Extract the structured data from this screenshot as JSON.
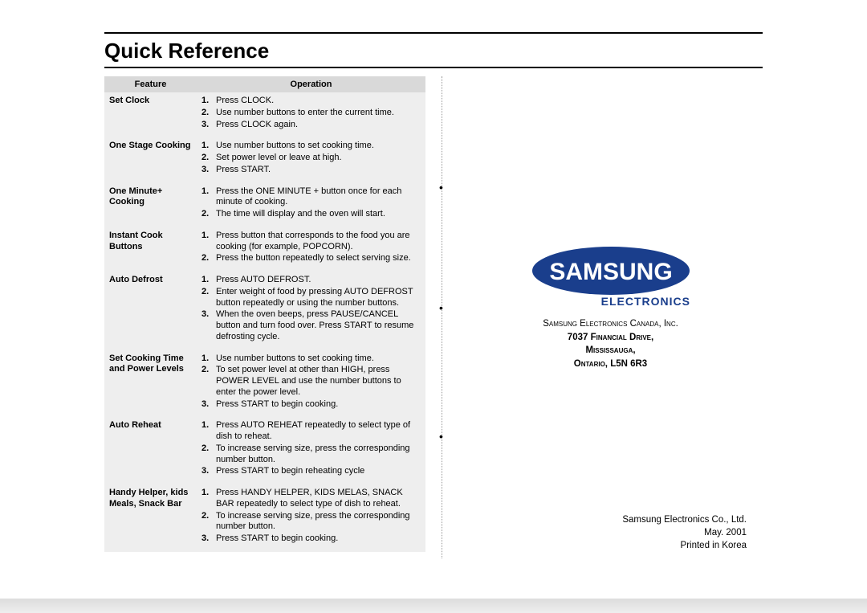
{
  "page": {
    "title": "Quick Reference",
    "background": "#ffffff",
    "rule_color": "#000000",
    "title_fontsize": 26
  },
  "table": {
    "header_bg": "#d9d9d9",
    "body_bg": "#eeeeee",
    "fontsize": 11,
    "columns": {
      "feature": "Feature",
      "operation": "Operation"
    },
    "rows": [
      {
        "feature": "Set Clock",
        "steps": [
          "Press CLOCK.",
          "Use number buttons to enter the current time.",
          "Press CLOCK again."
        ]
      },
      {
        "feature": "One Stage Cooking",
        "steps": [
          "Use number buttons to set cooking time.",
          "Set power level or leave at high.",
          "Press START."
        ]
      },
      {
        "feature": "One Minute+ Cooking",
        "steps": [
          "Press the ONE MINUTE + button once for each minute of cooking.",
          "The time will display and the oven will start."
        ]
      },
      {
        "feature": "Instant Cook Buttons",
        "steps": [
          "Press button that corresponds to the food you are cooking (for example, POPCORN).",
          "Press the button repeatedly to select serving size."
        ]
      },
      {
        "feature": "Auto Defrost",
        "steps": [
          "Press AUTO DEFROST.",
          "Enter weight of food by pressing AUTO DEFROST button repeatedly or using the number buttons.",
          "When the oven beeps, press PAUSE/CANCEL button and turn food over. Press START to resume defrosting cycle."
        ]
      },
      {
        "feature": "Set Cooking Time and Power Levels",
        "steps": [
          "Use number buttons to set cooking time.",
          "To set power level at other than HIGH, press POWER LEVEL and use the number buttons to enter the power level.",
          "Press START to begin cooking."
        ]
      },
      {
        "feature": "Auto Reheat",
        "steps": [
          "Press AUTO REHEAT repeatedly to select type of dish to reheat.",
          "To increase serving size, press the corresponding number button.",
          "Press START to begin reheating cycle"
        ]
      },
      {
        "feature": "Handy Helper, kids Meals, Snack Bar",
        "steps": [
          "Press HANDY HELPER, KIDS MELAS, SNACK BAR repeatedly to select type of dish to reheat.",
          "To increase serving size, press the corresponding number button.",
          "Press START to begin cooking."
        ]
      }
    ]
  },
  "brand": {
    "logo_text": "SAMSUNG",
    "logo_color": "#1a3e8c",
    "logo_text_color": "#ffffff",
    "sub": "ELECTRONICS",
    "company_sc": "Samsung Electronics Canada, Inc.",
    "addr1_pre": "7037 ",
    "addr1_sc": "Financial Drive,",
    "addr2_sc": "Mississauga,",
    "addr3_sc_pre": "Ontario, ",
    "addr3_bold": "L5N 6R3"
  },
  "footer": {
    "line1": "Samsung Electronics Co., Ltd.",
    "line2": "May. 2001",
    "line3": "Printed in Korea"
  }
}
